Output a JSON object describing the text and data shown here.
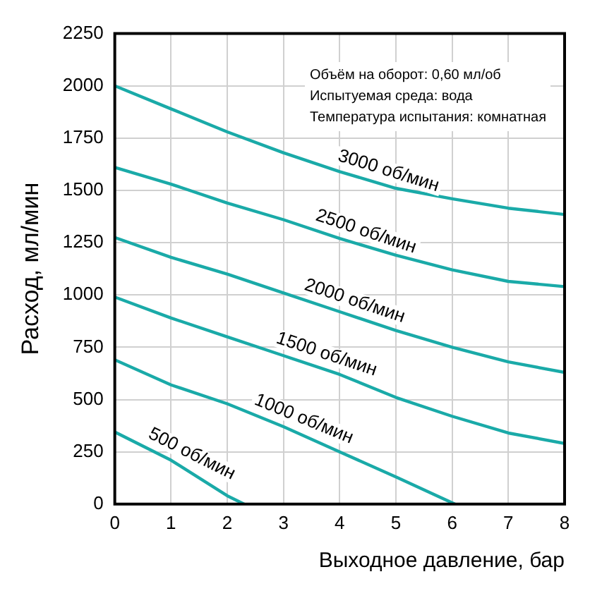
{
  "chart_data": {
    "type": "line",
    "xlabel": "Выходное давление, бар",
    "ylabel": "Расход, мл/мин",
    "annotations": [
      "Объём на оборот: 0,60 мл/об",
      "Испытуемая среда: вода",
      "Температура испытания: комнатная"
    ],
    "xlim": [
      0,
      8
    ],
    "xticks": [
      0,
      1,
      2,
      3,
      4,
      5,
      6,
      7,
      8
    ],
    "ylim": [
      0,
      2250
    ],
    "yticks": [
      0,
      250,
      500,
      750,
      1000,
      1250,
      1500,
      1750,
      2000,
      2250
    ],
    "grid": true,
    "legend": false,
    "marker": "none",
    "line_style": "solid",
    "series": [
      {
        "name": "3000 об/мин",
        "color": "#1aaaa8",
        "x": [
          0,
          1,
          2,
          3,
          4,
          5,
          6,
          7,
          8
        ],
        "values": [
          2000,
          1890,
          1780,
          1680,
          1590,
          1510,
          1460,
          1415,
          1385
        ]
      },
      {
        "name": "2500 об/мин",
        "color": "#1aaaa8",
        "x": [
          0,
          1,
          2,
          3,
          4,
          5,
          6,
          7,
          8
        ],
        "values": [
          1610,
          1530,
          1440,
          1360,
          1270,
          1190,
          1120,
          1065,
          1040
        ]
      },
      {
        "name": "2000 об/мин",
        "color": "#1aaaa8",
        "x": [
          0,
          1,
          2,
          3,
          4,
          5,
          6,
          7,
          8
        ],
        "values": [
          1275,
          1180,
          1100,
          1010,
          920,
          830,
          750,
          680,
          630
        ]
      },
      {
        "name": "1500 об/мин",
        "color": "#1aaaa8",
        "x": [
          0,
          1,
          2,
          3,
          4,
          5,
          6,
          7,
          8
        ],
        "values": [
          990,
          890,
          800,
          710,
          620,
          510,
          420,
          340,
          290
        ]
      },
      {
        "name": "1000 об/мин",
        "color": "#1aaaa8",
        "x": [
          0,
          1,
          2,
          3,
          4,
          5,
          6.05
        ],
        "values": [
          690,
          570,
          480,
          370,
          250,
          130,
          0
        ]
      },
      {
        "name": "500 об/мин",
        "color": "#1aaaa8",
        "x": [
          0,
          1,
          2,
          2.3
        ],
        "values": [
          345,
          210,
          40,
          0
        ]
      }
    ]
  }
}
